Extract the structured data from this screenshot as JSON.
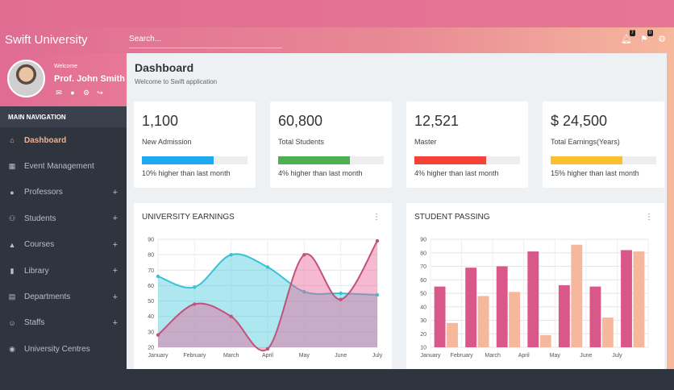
{
  "header": {
    "brand": "Swift University",
    "search_placeholder": "Search...",
    "bell_badge": "7",
    "flag_badge": "0"
  },
  "profile": {
    "welcome": "Welcome",
    "name": "Prof. John Smith"
  },
  "sidebar": {
    "heading": "MAIN NAVIGATION",
    "items": [
      {
        "label": "Dashboard",
        "icon": "home-icon",
        "active": true,
        "plus": false
      },
      {
        "label": "Event Management",
        "icon": "calendar-icon",
        "active": false,
        "plus": false
      },
      {
        "label": "Professors",
        "icon": "user-icon",
        "active": false,
        "plus": true
      },
      {
        "label": "Students",
        "icon": "users-icon",
        "active": false,
        "plus": true
      },
      {
        "label": "Courses",
        "icon": "graduation-cap-icon",
        "active": false,
        "plus": true
      },
      {
        "label": "Library",
        "icon": "book-icon",
        "active": false,
        "plus": true
      },
      {
        "label": "Departments",
        "icon": "building-icon",
        "active": false,
        "plus": true
      },
      {
        "label": "Staffs",
        "icon": "smile-icon",
        "active": false,
        "plus": true
      },
      {
        "label": "University Centres",
        "icon": "map-pin-icon",
        "active": false,
        "plus": false
      }
    ]
  },
  "page": {
    "title": "Dashboard",
    "subtitle": "Welcome to Swift application"
  },
  "stats": [
    {
      "value": "1,100",
      "label": "New Admission",
      "progress": 0.68,
      "color": "#1eaaf1",
      "note": "10% higher than last month"
    },
    {
      "value": "60,800",
      "label": "Total Students",
      "progress": 0.68,
      "color": "#4caf50",
      "note": "4% higher than last month"
    },
    {
      "value": "12,521",
      "label": "Master",
      "progress": 0.68,
      "color": "#f44336",
      "note": "4% higher than last month"
    },
    {
      "value": "$ 24,500",
      "label": "Total Earnings(Years)",
      "progress": 0.68,
      "color": "#fbc02d",
      "note": "15% higher than last month"
    }
  ],
  "cards": {
    "earnings_title": "UNIVERSITY EARNINGS",
    "passing_title": "STUDENT PASSING"
  },
  "chart_data": [
    {
      "type": "area",
      "title": "UNIVERSITY EARNINGS",
      "categories": [
        "January",
        "February",
        "March",
        "April",
        "May",
        "June",
        "July"
      ],
      "ylim": [
        20,
        90
      ],
      "yticks": [
        20,
        30,
        40,
        50,
        60,
        70,
        80,
        90
      ],
      "grid": true,
      "series": [
        {
          "values": [
            66,
            59,
            80,
            72,
            56,
            55,
            54
          ],
          "color": "#35c3d8"
        },
        {
          "values": [
            28,
            48,
            40,
            19,
            80,
            51,
            89
          ],
          "color": "#c0527e"
        }
      ]
    },
    {
      "type": "bar",
      "title": "STUDENT PASSING",
      "categories": [
        "January",
        "February",
        "March",
        "April",
        "May",
        "June",
        "July"
      ],
      "ylim": [
        10,
        90
      ],
      "yticks": [
        10,
        20,
        30,
        40,
        50,
        60,
        70,
        80,
        90
      ],
      "grid": true,
      "series": [
        {
          "values": [
            55,
            69,
            70,
            81,
            56,
            55,
            82
          ],
          "color": "#d95889"
        },
        {
          "values": [
            28,
            48,
            51,
            19,
            86,
            32,
            81
          ],
          "color": "#f6b89d"
        }
      ]
    }
  ]
}
